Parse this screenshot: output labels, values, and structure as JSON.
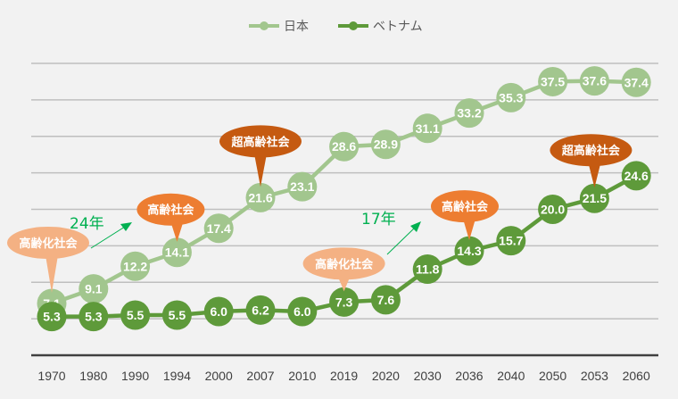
{
  "chart_data": {
    "type": "line",
    "title": "",
    "xlabel": "",
    "ylabel": "",
    "ylim": [
      0,
      40
    ],
    "y_gridlines": [
      5,
      10,
      15,
      20,
      25,
      30,
      35,
      40
    ],
    "grid": true,
    "y_tick_labels_shown": false,
    "legend": "top",
    "categories": [
      "1970",
      "1980",
      "1990",
      "1994",
      "2000",
      "2007",
      "2010",
      "2019",
      "2020",
      "2030",
      "2036",
      "2040",
      "2050",
      "2053",
      "2060"
    ],
    "series": [
      {
        "name": "日本",
        "color": "#a2c68e",
        "values": [
          7.1,
          9.1,
          12.2,
          14.1,
          17.4,
          21.6,
          23.1,
          28.6,
          28.9,
          31.1,
          33.2,
          35.3,
          37.5,
          37.6,
          37.4
        ]
      },
      {
        "name": "ベトナム",
        "color": "#5e9a3a",
        "values": [
          5.3,
          5.3,
          5.5,
          5.5,
          6.0,
          6.2,
          6.0,
          7.3,
          7.6,
          11.8,
          14.3,
          15.7,
          20.0,
          21.5,
          24.6
        ]
      }
    ],
    "annotations": [
      {
        "text": "高齢化社会",
        "series": 0,
        "category": "1970",
        "color": "#f4b183"
      },
      {
        "text": "高齢社会",
        "series": 0,
        "category": "1994",
        "color": "#ed7d31"
      },
      {
        "text": "超高齢社会",
        "series": 0,
        "category": "2007",
        "color": "#c55a11"
      },
      {
        "text": "高齢化社会",
        "series": 1,
        "category": "2019",
        "color": "#f4b183"
      },
      {
        "text": "高齢社会",
        "series": 1,
        "category": "2036",
        "color": "#ed7d31"
      },
      {
        "text": "超高齢社会",
        "series": 1,
        "category": "2053",
        "color": "#c55a11"
      }
    ],
    "interval_labels": [
      {
        "text": "24年",
        "color": "#00b050"
      },
      {
        "text": "17年",
        "color": "#00b050"
      }
    ]
  }
}
